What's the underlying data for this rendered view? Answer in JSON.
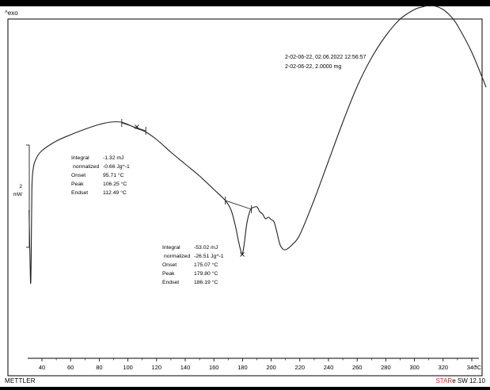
{
  "header": {
    "exo_label": "^exo"
  },
  "footer": {
    "brand": "METTLER",
    "software_prefix": "STAR",
    "software_suffix": "e SW 12.10"
  },
  "sample_info": {
    "line1": "2-02-06-22, 02.06.2022 12:56:57",
    "line2": "2-02-06-22, 2.0000 mg"
  },
  "scale_bar": {
    "value": "2",
    "unit": "mW"
  },
  "annotations": [
    {
      "rows": [
        {
          "label": "Integral",
          "value": "-1.32 mJ"
        },
        {
          "label": "normalized",
          "value": "-0.66 Jg^-1"
        },
        {
          "label": "Onset",
          "value": "95.71 °C"
        },
        {
          "label": "Peak",
          "value": "106.25 °C"
        },
        {
          "label": "Endset",
          "value": "112.49 °C"
        }
      ]
    },
    {
      "rows": [
        {
          "label": "Integral",
          "value": "-53.02 mJ"
        },
        {
          "label": "normalized",
          "value": "-26.51 Jg^-1"
        },
        {
          "label": "Onset",
          "value": "175.07 °C"
        },
        {
          "label": "Peak",
          "value": "179.80 °C"
        },
        {
          "label": "Endset",
          "value": "186.19 °C"
        }
      ]
    }
  ],
  "chart_data": {
    "type": "line",
    "xlabel": "°C",
    "x_ticks": [
      40,
      60,
      80,
      100,
      120,
      140,
      160,
      180,
      200,
      220,
      240,
      260,
      280,
      300,
      320,
      340
    ],
    "xlim": [
      30,
      350
    ],
    "series": [
      {
        "x": [
          31,
          32,
          32.5,
          33,
          34,
          36,
          40,
          50,
          60,
          70,
          80,
          88,
          95,
          100,
          106,
          112,
          120,
          130,
          140,
          150,
          160,
          168,
          172,
          175,
          177,
          179,
          179.8,
          181,
          183,
          185,
          186,
          187,
          190,
          192,
          194,
          196,
          198,
          200,
          202,
          204,
          206,
          208,
          210,
          212,
          215,
          220,
          230,
          240,
          250,
          260,
          270,
          280,
          290,
          300,
          305,
          310,
          315,
          320,
          325,
          330,
          340,
          350
        ],
        "y": [
          0.5,
          -8.5,
          -5.5,
          3.3,
          5.8,
          7.0,
          8.0,
          9.2,
          10.0,
          10.7,
          11.3,
          11.6,
          11.6,
          11.3,
          10.8,
          10.4,
          9.4,
          7.8,
          6.3,
          4.8,
          3.1,
          1.7,
          0.5,
          -1.5,
          -3.3,
          -4.8,
          -5.1,
          -4.0,
          -1.2,
          0.3,
          0.6,
          0.8,
          0.9,
          0.3,
          0.0,
          -0.6,
          -0.4,
          -0.7,
          -1.0,
          -2.3,
          -3.8,
          -4.4,
          -4.5,
          -4.3,
          -3.8,
          -2.6,
          1.8,
          6.7,
          11.6,
          16.1,
          19.7,
          22.5,
          24.6,
          25.8,
          26.1,
          26.3,
          26.2,
          25.8,
          25.0,
          23.8,
          20.4,
          16.0
        ]
      }
    ],
    "baselines": [
      {
        "x": [
          95.71,
          112.49
        ],
        "y": [
          11.5,
          10.5
        ]
      },
      {
        "x": [
          168,
          186.19
        ],
        "y": [
          1.7,
          0.6
        ]
      }
    ],
    "ylim": [
      -10,
      30
    ],
    "grid": false
  }
}
